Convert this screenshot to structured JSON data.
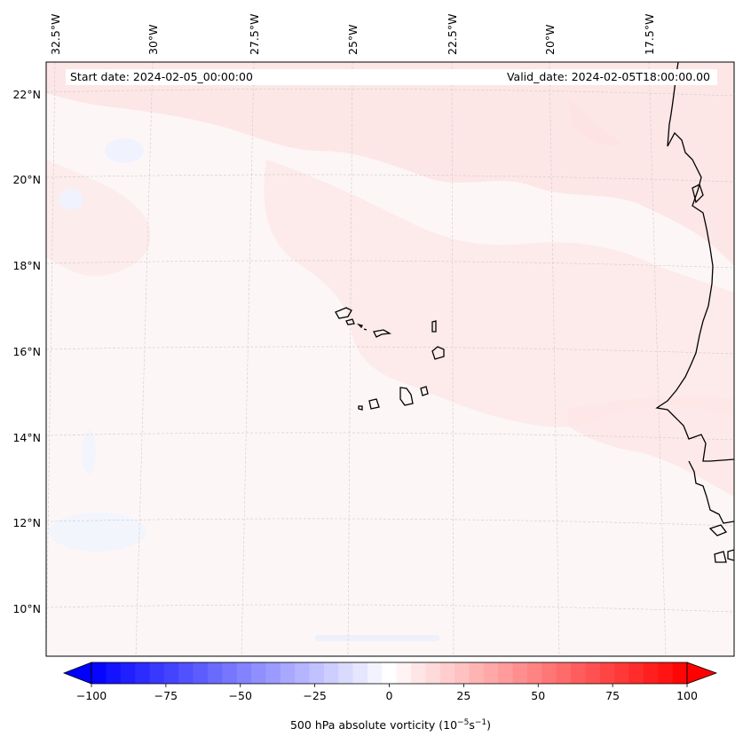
{
  "header": {
    "start_date": "Start date: 2024-02-05_00:00:00",
    "valid_date": "Valid_date: 2024-02-05T18:00:00.00"
  },
  "map": {
    "lon_labels": [
      "32.5°W",
      "30°W",
      "27.5°W",
      "25°W",
      "22.5°W",
      "20°W",
      "17.5°W"
    ],
    "lat_labels": [
      "22°N",
      "20°N",
      "18°N",
      "16°N",
      "14°N",
      "12°N",
      "10°N"
    ],
    "ocean_color": "#fdf6f6",
    "positive_anomaly_color": "#fde6e6",
    "negative_anomaly_color": "#f1f3fd",
    "coast_color": "#000000",
    "grid_color": "#c8c8c8"
  },
  "colorbar": {
    "label_prefix": "500 hPa absolute vorticity (10",
    "label_exp1": "−5",
    "label_mid": "s",
    "label_exp2": "−1",
    "label_suffix": ")",
    "ticks": [
      "−100",
      "−75",
      "−50",
      "−25",
      "0",
      "25",
      "50",
      "75",
      "100"
    ],
    "min": -100,
    "max": 100,
    "levels": 41,
    "colors": {
      "low": "#0000ff",
      "mid": "#ffffff",
      "high": "#ff0000"
    }
  }
}
